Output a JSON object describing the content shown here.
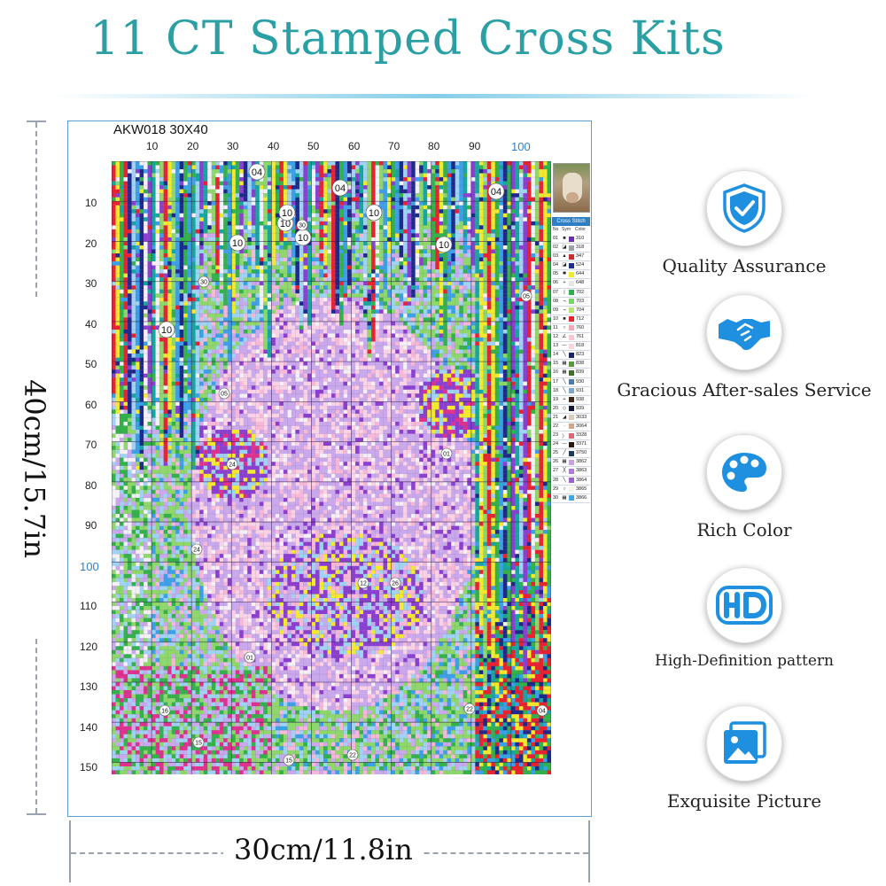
{
  "title": "11 CT Stamped Cross Kits",
  "pattern": {
    "code": "AKW018 30X40",
    "col_labels": [
      "10",
      "20",
      "30",
      "40",
      "50",
      "60",
      "70",
      "80",
      "90",
      "100"
    ],
    "row_labels": [
      "10",
      "20",
      "30",
      "40",
      "50",
      "60",
      "70",
      "80",
      "90",
      "100",
      "110",
      "120",
      "130",
      "140",
      "150"
    ],
    "region_markers": [
      "04",
      "04",
      "04",
      "10",
      "10",
      "10",
      "10",
      "10",
      "10",
      "10",
      "30",
      "30",
      "05",
      "05",
      "01",
      "24",
      "24",
      "01",
      "12",
      "26",
      "16",
      "15",
      "15",
      "22",
      "22",
      "04"
    ]
  },
  "legend": {
    "header": "Cross Stitch",
    "columns": [
      "No",
      "Sym",
      "Color"
    ],
    "items": [
      {
        "no": "01",
        "sym": "■",
        "code": "310",
        "color": "#6a2fb0"
      },
      {
        "no": "02",
        "sym": "◪",
        "code": "318",
        "color": "#9aa0a8"
      },
      {
        "no": "03",
        "sym": "▲",
        "code": "347",
        "color": "#d02a2a"
      },
      {
        "no": "04",
        "sym": "◪",
        "code": "524",
        "color": "#1a2f8a"
      },
      {
        "no": "05",
        "sym": "✱",
        "code": "644",
        "color": "#f1ea2a"
      },
      {
        "no": "06",
        "sym": "+",
        "code": "648",
        "color": "#e6e6e6"
      },
      {
        "no": "07",
        "sym": "|",
        "code": "702",
        "color": "#2bb04a"
      },
      {
        "no": "08",
        "sym": "¬",
        "code": "703",
        "color": "#7cd36a"
      },
      {
        "no": "09",
        "sym": "¬",
        "code": "704",
        "color": "#b6e86e"
      },
      {
        "no": "10",
        "sym": "■",
        "code": "712",
        "color": "#e8232f"
      },
      {
        "no": "11",
        "sym": "○",
        "code": "760",
        "color": "#f4a8b8"
      },
      {
        "no": "12",
        "sym": "∠",
        "code": "761",
        "color": "#f8c6d0"
      },
      {
        "no": "13",
        "sym": "—",
        "code": "818",
        "color": "#fbd5de"
      },
      {
        "no": "14",
        "sym": "╲",
        "code": "823",
        "color": "#1a2466"
      },
      {
        "no": "15",
        "sym": "▦",
        "code": "838",
        "color": "#5a9a3a"
      },
      {
        "no": "16",
        "sym": "▦",
        "code": "839",
        "color": "#3f6f2a"
      },
      {
        "no": "17",
        "sym": "╲",
        "code": "930",
        "color": "#4a7aa8"
      },
      {
        "no": "18",
        "sym": "╲",
        "code": "931",
        "color": "#7aa8cf"
      },
      {
        "no": "19",
        "sym": "+",
        "code": "938",
        "color": "#3b2a1a"
      },
      {
        "no": "20",
        "sym": "◇",
        "code": "939",
        "color": "#12173a"
      },
      {
        "no": "21",
        "sym": "◢",
        "code": "3033",
        "color": "#d8cdbd"
      },
      {
        "no": "22",
        "sym": "·",
        "code": "3064",
        "color": "#d9a58a"
      },
      {
        "no": "23",
        "sym": "〉",
        "code": "3328",
        "color": "#d46a7a"
      },
      {
        "no": "24",
        "sym": "—",
        "code": "3371",
        "color": "#2a1a0e"
      },
      {
        "no": "25",
        "sym": "╱",
        "code": "3750",
        "color": "#1d3a5a"
      },
      {
        "no": "26",
        "sym": "▦",
        "code": "3862",
        "color": "#c8a2e0"
      },
      {
        "no": "27",
        "sym": "╳",
        "code": "3863",
        "color": "#b37ad8"
      },
      {
        "no": "28",
        "sym": "╲",
        "code": "3864",
        "color": "#9a5fd0"
      },
      {
        "no": "29",
        "sym": "○",
        "code": "3865",
        "color": "#f7f4ee"
      },
      {
        "no": "30",
        "sym": "▦",
        "code": "3866",
        "color": "#3ba8e8"
      }
    ]
  },
  "dimensions": {
    "height_label": "40cm/15.7in",
    "width_label": "30cm/11.8in"
  },
  "features": [
    {
      "label": "Quality Assurance",
      "icon": "shield-check-icon"
    },
    {
      "label": "Gracious After-sales Service",
      "icon": "handshake-icon"
    },
    {
      "label": "Rich Color",
      "icon": "palette-icon"
    },
    {
      "label": "High-Definition pattern",
      "icon": "hd-icon"
    },
    {
      "label": "Exquisite Picture",
      "icon": "picture-icon"
    }
  ],
  "colors": {
    "title": "#2aa0a5",
    "icon_blue": "#1f8fe0",
    "frame_border": "#5a9ed6"
  }
}
